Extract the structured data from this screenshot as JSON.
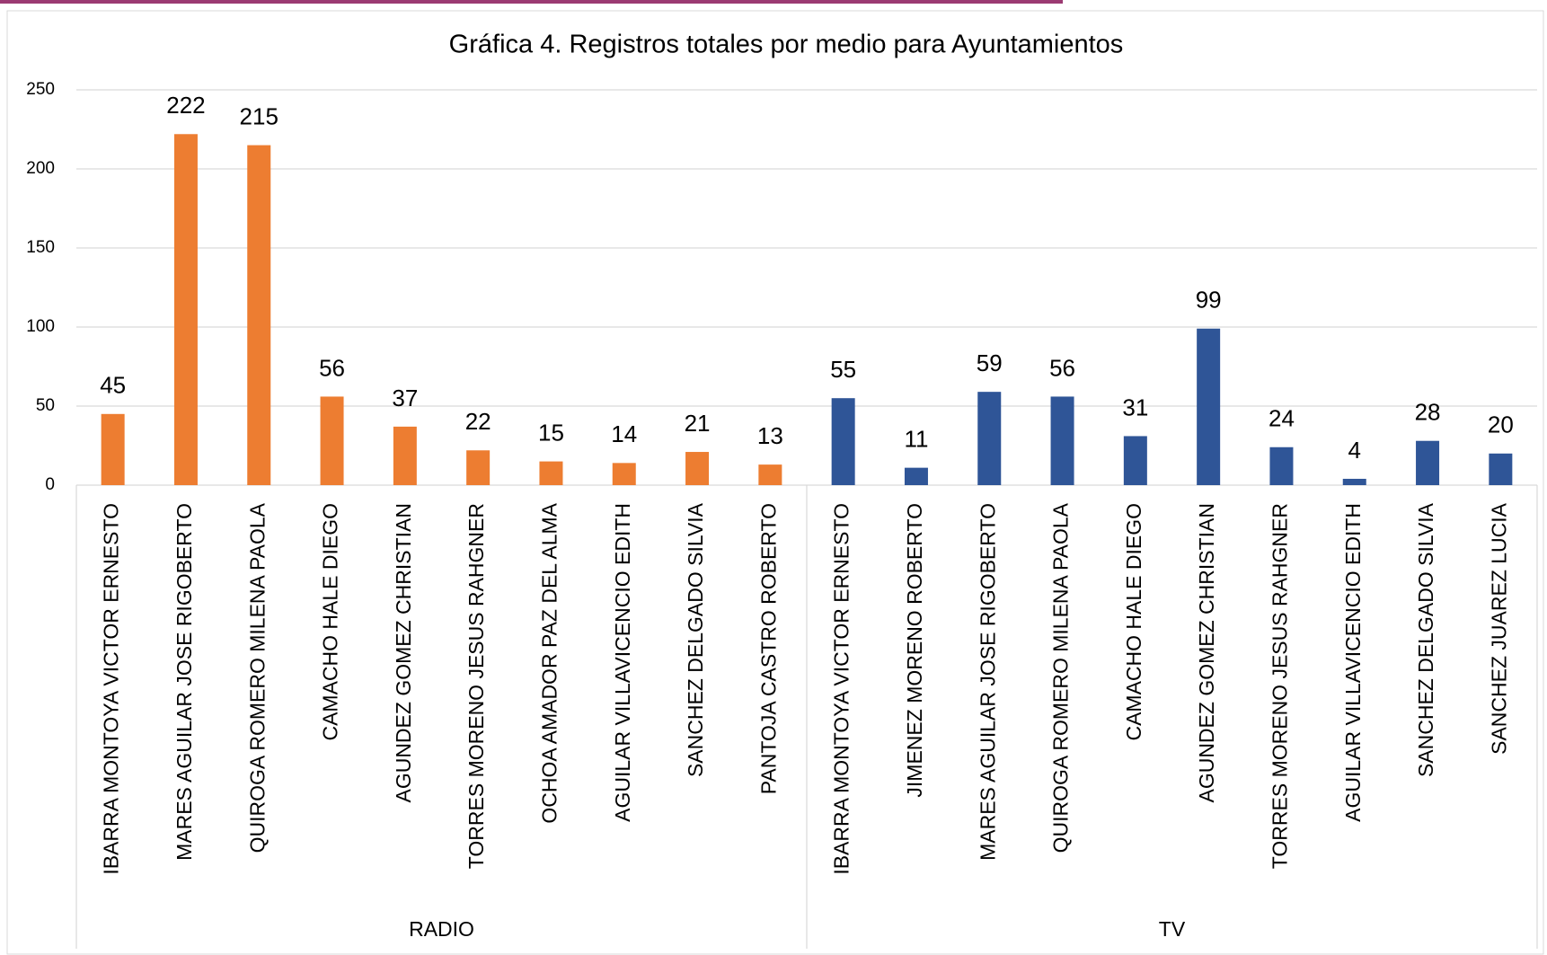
{
  "chart_data": {
    "type": "bar",
    "title": "Gráfica 4. Registros totales por medio para Ayuntamientos",
    "ylim": [
      0,
      250
    ],
    "yticks": [
      0,
      50,
      100,
      150,
      200,
      250
    ],
    "grid": true,
    "groups": [
      {
        "name": "RADIO",
        "color": "#ed7d31",
        "categories": [
          "IBARRA MONTOYA VICTOR ERNESTO",
          "MARES AGUILAR JOSE RIGOBERTO",
          "QUIROGA ROMERO MILENA PAOLA",
          "CAMACHO HALE DIEGO",
          "AGUNDEZ GOMEZ CHRISTIAN",
          "TORRES MORENO JESUS RAHGNER",
          "OCHOA AMADOR PAZ DEL ALMA",
          "AGUILAR VILLAVICENCIO EDITH",
          "SANCHEZ DELGADO SILVIA",
          "PANTOJA CASTRO ROBERTO"
        ],
        "values": [
          45,
          222,
          215,
          56,
          37,
          22,
          15,
          14,
          21,
          13
        ]
      },
      {
        "name": "TV",
        "color": "#2f5597",
        "categories": [
          "IBARRA MONTOYA VICTOR ERNESTO",
          "JIMENEZ MORENO ROBERTO",
          "MARES AGUILAR JOSE RIGOBERTO",
          "QUIROGA ROMERO MILENA PAOLA",
          "CAMACHO HALE DIEGO",
          "AGUNDEZ GOMEZ CHRISTIAN",
          "TORRES MORENO JESUS RAHGNER",
          "AGUILAR VILLAVICENCIO EDITH",
          "SANCHEZ DELGADO SILVIA",
          "SANCHEZ JUAREZ LUCIA"
        ],
        "values": [
          55,
          11,
          59,
          56,
          31,
          99,
          24,
          4,
          28,
          20
        ]
      }
    ]
  }
}
